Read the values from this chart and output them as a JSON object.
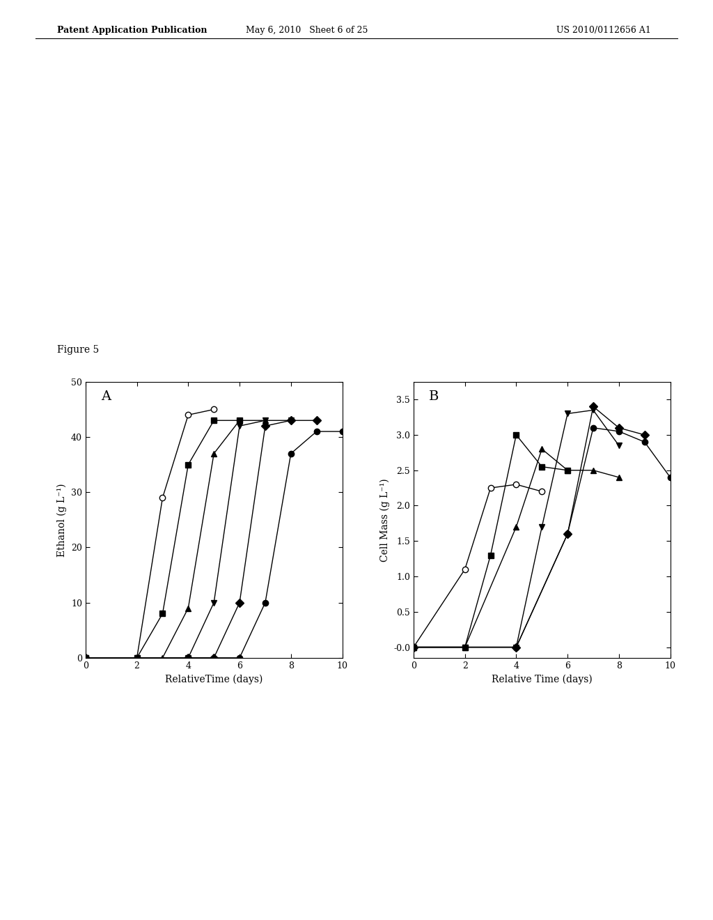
{
  "panel_A": {
    "label": "A",
    "xlabel": "RelativeTime (days)",
    "ylabel": "Ethanol (g L⁻¹)",
    "xlim": [
      0,
      10
    ],
    "ylim": [
      0,
      50
    ],
    "xticks": [
      0,
      2,
      4,
      6,
      8,
      10
    ],
    "yticks": [
      0,
      10,
      20,
      30,
      40,
      50
    ],
    "series": [
      {
        "marker": "o",
        "filled": false,
        "x": [
          0,
          2,
          3,
          4,
          5
        ],
        "y": [
          0,
          0,
          29,
          44,
          45
        ]
      },
      {
        "marker": "s",
        "filled": true,
        "x": [
          0,
          2,
          3,
          4,
          5,
          6
        ],
        "y": [
          0,
          0,
          8,
          35,
          43,
          43
        ]
      },
      {
        "marker": "^",
        "filled": true,
        "x": [
          0,
          2,
          3,
          4,
          5,
          6,
          7
        ],
        "y": [
          0,
          0,
          0,
          9,
          37,
          43,
          43
        ]
      },
      {
        "marker": "v",
        "filled": true,
        "x": [
          0,
          2,
          4,
          5,
          6,
          7,
          8
        ],
        "y": [
          0,
          0,
          0,
          10,
          42,
          43,
          43
        ]
      },
      {
        "marker": "D",
        "filled": true,
        "x": [
          0,
          4,
          5,
          6,
          7,
          8,
          9
        ],
        "y": [
          0,
          0,
          0,
          10,
          42,
          43,
          43
        ]
      },
      {
        "marker": "o",
        "filled": true,
        "x": [
          0,
          4,
          6,
          7,
          8,
          9,
          10
        ],
        "y": [
          0,
          0,
          0,
          10,
          37,
          41,
          41
        ]
      }
    ]
  },
  "panel_B": {
    "label": "B",
    "xlabel": "Relative Time (days)",
    "ylabel": "Cell Mass (g L⁻¹)",
    "xlim": [
      0,
      10
    ],
    "ylim": [
      -0.15,
      3.75
    ],
    "xticks": [
      0,
      2,
      4,
      6,
      8,
      10
    ],
    "yticks": [
      0.0,
      0.5,
      1.0,
      1.5,
      2.0,
      2.5,
      3.0,
      3.5
    ],
    "yticklabels": [
      "-0.0",
      "0.5",
      "1.0",
      "1.5",
      "2.0",
      "2.5",
      "3.0",
      "3.5"
    ],
    "series": [
      {
        "marker": "o",
        "filled": false,
        "x": [
          0,
          2,
          3,
          4,
          5
        ],
        "y": [
          0,
          1.1,
          2.25,
          2.3,
          2.2
        ]
      },
      {
        "marker": "s",
        "filled": true,
        "x": [
          0,
          2,
          3,
          4,
          5,
          6
        ],
        "y": [
          0,
          0,
          1.3,
          3.0,
          2.55,
          2.5
        ]
      },
      {
        "marker": "^",
        "filled": true,
        "x": [
          0,
          2,
          4,
          5,
          6,
          7,
          8
        ],
        "y": [
          0,
          0,
          1.7,
          2.8,
          2.5,
          2.5,
          2.4
        ]
      },
      {
        "marker": "v",
        "filled": true,
        "x": [
          0,
          2,
          4,
          5,
          6,
          7,
          8
        ],
        "y": [
          0,
          0,
          0,
          1.7,
          3.3,
          3.35,
          2.85
        ]
      },
      {
        "marker": "D",
        "filled": true,
        "x": [
          0,
          4,
          6,
          7,
          8,
          9
        ],
        "y": [
          0,
          0,
          1.6,
          3.4,
          3.1,
          3.0
        ]
      },
      {
        "marker": "o",
        "filled": true,
        "x": [
          0,
          4,
          6,
          7,
          8,
          9,
          10
        ],
        "y": [
          0,
          0,
          1.6,
          3.1,
          3.05,
          2.9,
          2.4
        ]
      }
    ]
  },
  "figure": {
    "bg_color": "#ffffff",
    "line_color": "#000000",
    "marker_size": 6,
    "linewidth": 1.0,
    "label_fontsize": 10,
    "tick_fontsize": 9,
    "panel_label_fontsize": 14,
    "header_left": "Patent Application Publication",
    "header_mid": "May 6, 2010   Sheet 6 of 25",
    "header_right": "US 2010/0112656 A1",
    "figure_label": "Figure 5"
  }
}
